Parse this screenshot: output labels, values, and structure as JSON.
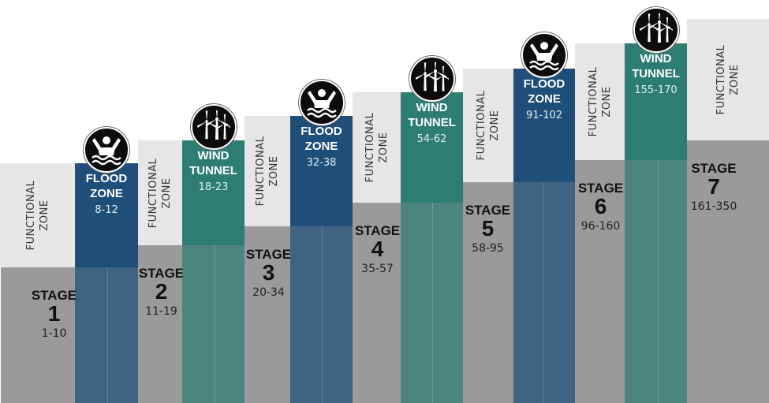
{
  "colors": {
    "stage_gray": "#9a9a9a",
    "functional_zone": "#e6e6e6",
    "flood_zone": "#1f4e79",
    "wind_tunnel": "#2e7d73",
    "icon_bg": "#0c0c0c"
  },
  "functional_zone_label": "FUNCTIONAL ZONE",
  "stages": [
    {
      "title": "STAGE",
      "number": "1",
      "range": "1-10"
    },
    {
      "title": "STAGE",
      "number": "2",
      "range": "11-19"
    },
    {
      "title": "STAGE",
      "number": "3",
      "range": "20-34"
    },
    {
      "title": "STAGE",
      "number": "4",
      "range": "35-57"
    },
    {
      "title": "STAGE",
      "number": "5",
      "range": "58-95"
    },
    {
      "title": "STAGE",
      "number": "6",
      "range": "96-160"
    },
    {
      "title": "STAGE",
      "number": "7",
      "range": "161-350"
    }
  ],
  "bands": [
    {
      "kind": "flood",
      "title": "FLOOD ZONE",
      "range": "8-12",
      "icon": "swimmer-icon"
    },
    {
      "kind": "wind",
      "title": "WIND TUNNEL",
      "range": "18-23",
      "icon": "wind-turbine-icon"
    },
    {
      "kind": "flood",
      "title": "FLOOD ZONE",
      "range": "32-38",
      "icon": "swimmer-icon"
    },
    {
      "kind": "wind",
      "title": "WIND TUNNEL",
      "range": "54-62",
      "icon": "wind-turbine-icon"
    },
    {
      "kind": "flood",
      "title": "FLOOD ZONE",
      "range": "91-102",
      "icon": "swimmer-icon"
    },
    {
      "kind": "wind",
      "title": "WIND TUNNEL",
      "range": "155-170",
      "icon": "wind-turbine-icon"
    }
  ]
}
